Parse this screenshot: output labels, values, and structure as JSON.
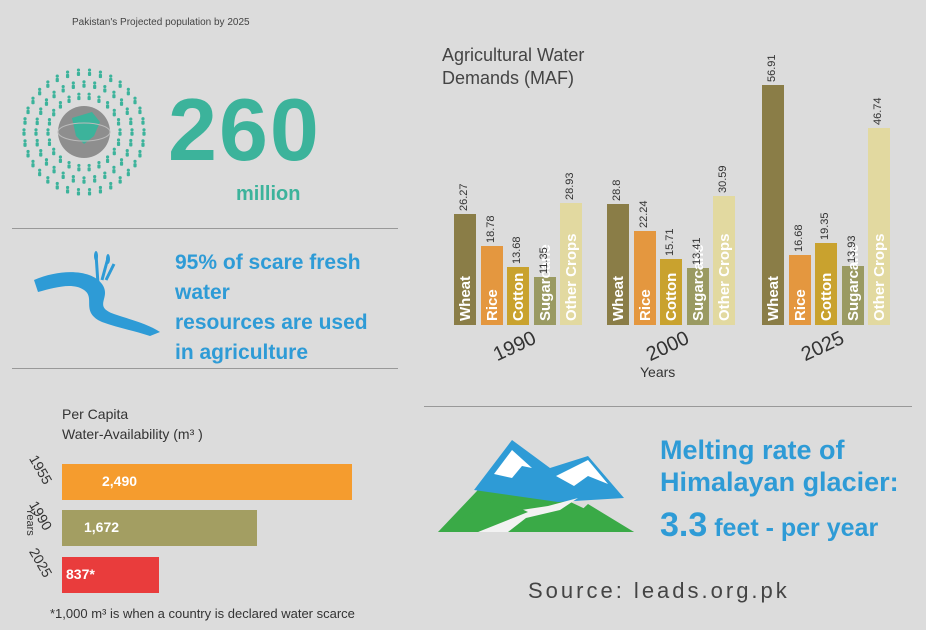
{
  "population": {
    "label": "Pakistan's Projected population by 2025",
    "value": "260",
    "unit": "million"
  },
  "water_note": {
    "line1": "95% of scare fresh water",
    "line2": "resources are used",
    "line3": "in agriculture"
  },
  "per_capita": {
    "title_line1": "Per Capita",
    "title_line2": "Water-Availability (m³ )",
    "axis_label": "Years",
    "footnote": "*1,000 m³  is when a country is declared water scarce"
  },
  "agri": {
    "title_line1": "Agricultural Water",
    "title_line2": "Demands (MAF)",
    "xlabel": "Years"
  },
  "glacier": {
    "line1": "Melting rate of",
    "line2": "Himalayan glacier:",
    "rate_value": "3.3",
    "rate_unit": " feet - per year"
  },
  "source": "Source: leads.org.pk",
  "colors": {
    "teal": "#3cb39b",
    "blue": "#2e9bd6",
    "wheat": "#8a7d47",
    "rice": "#e4973f",
    "cotton": "#c9a22e",
    "sugarcane": "#9a9a62",
    "other": "#e2d9a0",
    "bar1955": "#f59c2e",
    "bar1990": "#a39e62",
    "bar2025": "#e93c3c"
  },
  "chart_data": [
    {
      "type": "bar",
      "title": "Agricultural Water Demands (MAF)",
      "xlabel": "Years",
      "ylabel": "",
      "groups": [
        "1990",
        "2000",
        "2025"
      ],
      "categories": [
        "Wheat",
        "Rice",
        "Cotton",
        "Sugarcane",
        "Other Crops"
      ],
      "series": [
        {
          "name": "1990",
          "values": [
            26.27,
            18.78,
            13.68,
            11.35,
            28.93
          ]
        },
        {
          "name": "2000",
          "values": [
            28.8,
            22.24,
            15.71,
            13.41,
            30.59
          ]
        },
        {
          "name": "2025",
          "values": [
            56.91,
            16.68,
            19.35,
            13.93,
            46.74
          ]
        }
      ],
      "value_labels": [
        [
          "26.27",
          "18.78",
          "13.68",
          "11.35",
          "28.93"
        ],
        [
          "28.8",
          "22.24",
          "15.71",
          "13.41",
          "30.59"
        ],
        [
          "56.91",
          "16.68",
          "19.35",
          "13.93",
          "46.74"
        ]
      ],
      "ylim": [
        0,
        60
      ]
    },
    {
      "type": "bar",
      "orientation": "horizontal",
      "title": "Per Capita Water-Availability (m³ )",
      "ylabel": "Years",
      "categories": [
        "1955",
        "1990",
        "2025"
      ],
      "values": [
        2490,
        1672,
        837
      ],
      "value_labels": [
        "2,490",
        "1,672",
        "837*"
      ],
      "xlim": [
        0,
        2490
      ]
    }
  ]
}
